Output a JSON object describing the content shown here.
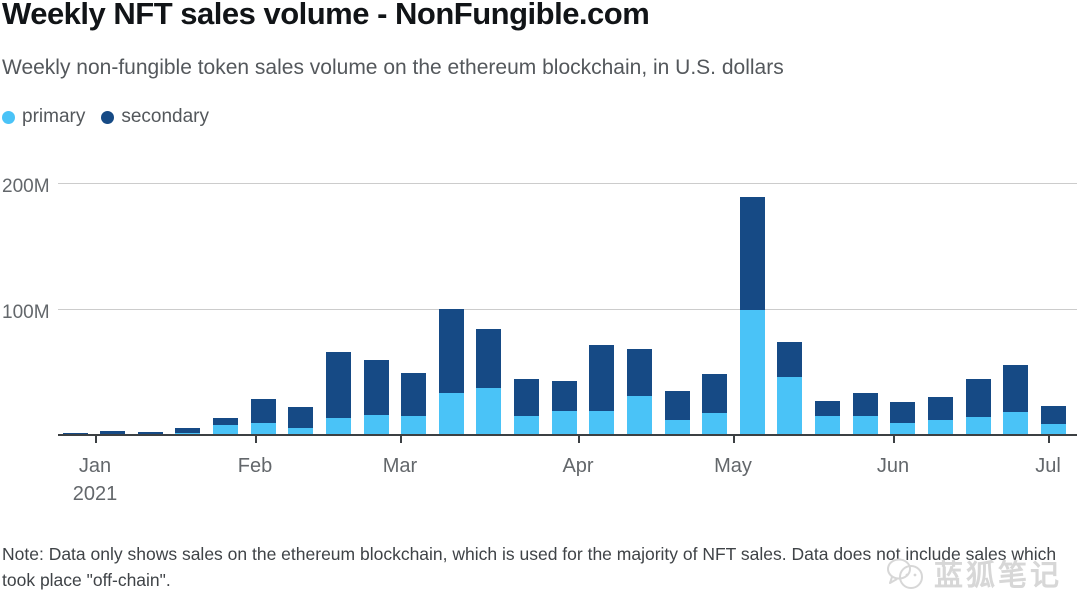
{
  "header": {
    "title": "Weekly NFT sales volume - NonFungible.com",
    "subtitle": "Weekly non-fungible token sales volume on the ethereum blockchain, in U.S. dollars"
  },
  "legend": {
    "items": [
      {
        "label": "primary",
        "color": "#4ac3f7"
      },
      {
        "label": "secondary",
        "color": "#164a85"
      }
    ]
  },
  "chart_data": {
    "type": "bar",
    "stacked": true,
    "title": "Weekly NFT sales volume - NonFungible.com",
    "subtitle": "Weekly non-fungible token sales volume on the ethereum blockchain, in U.S. dollars",
    "unit": "millions of U.S. dollars",
    "n_weeks": 27,
    "x_range": "Jan 2021 - Jul 2021 (weekly bars)",
    "ylim": [
      0,
      220
    ],
    "grid": "horizontal",
    "legend_position": "top-left",
    "y_ticks": [
      {
        "label": "100M",
        "value": 100
      },
      {
        "label": "200M",
        "value": 200
      }
    ],
    "month_ticks": [
      {
        "label": "Jan",
        "sublabel": "2021",
        "px": 37
      },
      {
        "label": "Feb",
        "px": 197
      },
      {
        "label": "Mar",
        "px": 342
      },
      {
        "label": "Apr",
        "px": 520
      },
      {
        "label": "May",
        "px": 675
      },
      {
        "label": "Jun",
        "px": 835
      },
      {
        "label": "Jul",
        "px": 990
      }
    ],
    "series": [
      {
        "name": "primary",
        "color": "#4ac3f7",
        "values": [
          1,
          1.5,
          1.5,
          2.5,
          9,
          10,
          6.5,
          14,
          17,
          15.5,
          34,
          38,
          15.5,
          20,
          20,
          32,
          13,
          18,
          100,
          47,
          15.5,
          16,
          10,
          13,
          15,
          19,
          9.5
        ]
      },
      {
        "name": "secondary",
        "color": "#164a85",
        "values": [
          1.5,
          2.5,
          2,
          4,
          5,
          19,
          16.5,
          53,
          43,
          34.5,
          67,
          47,
          29.5,
          24,
          52,
          37,
          23,
          31,
          90,
          28,
          12.5,
          18,
          17,
          18,
          30,
          37,
          14.5
        ]
      }
    ]
  },
  "footer": {
    "note_line1": "Note: Data only shows sales on the ethereum blockchain, which is used for the majority of NFT sales. Data does not include sales which",
    "note_line2": "took place \"off-chain\".",
    "watermark_text": "蓝狐笔记",
    "watermark_icon": "fox-chat-logo"
  }
}
